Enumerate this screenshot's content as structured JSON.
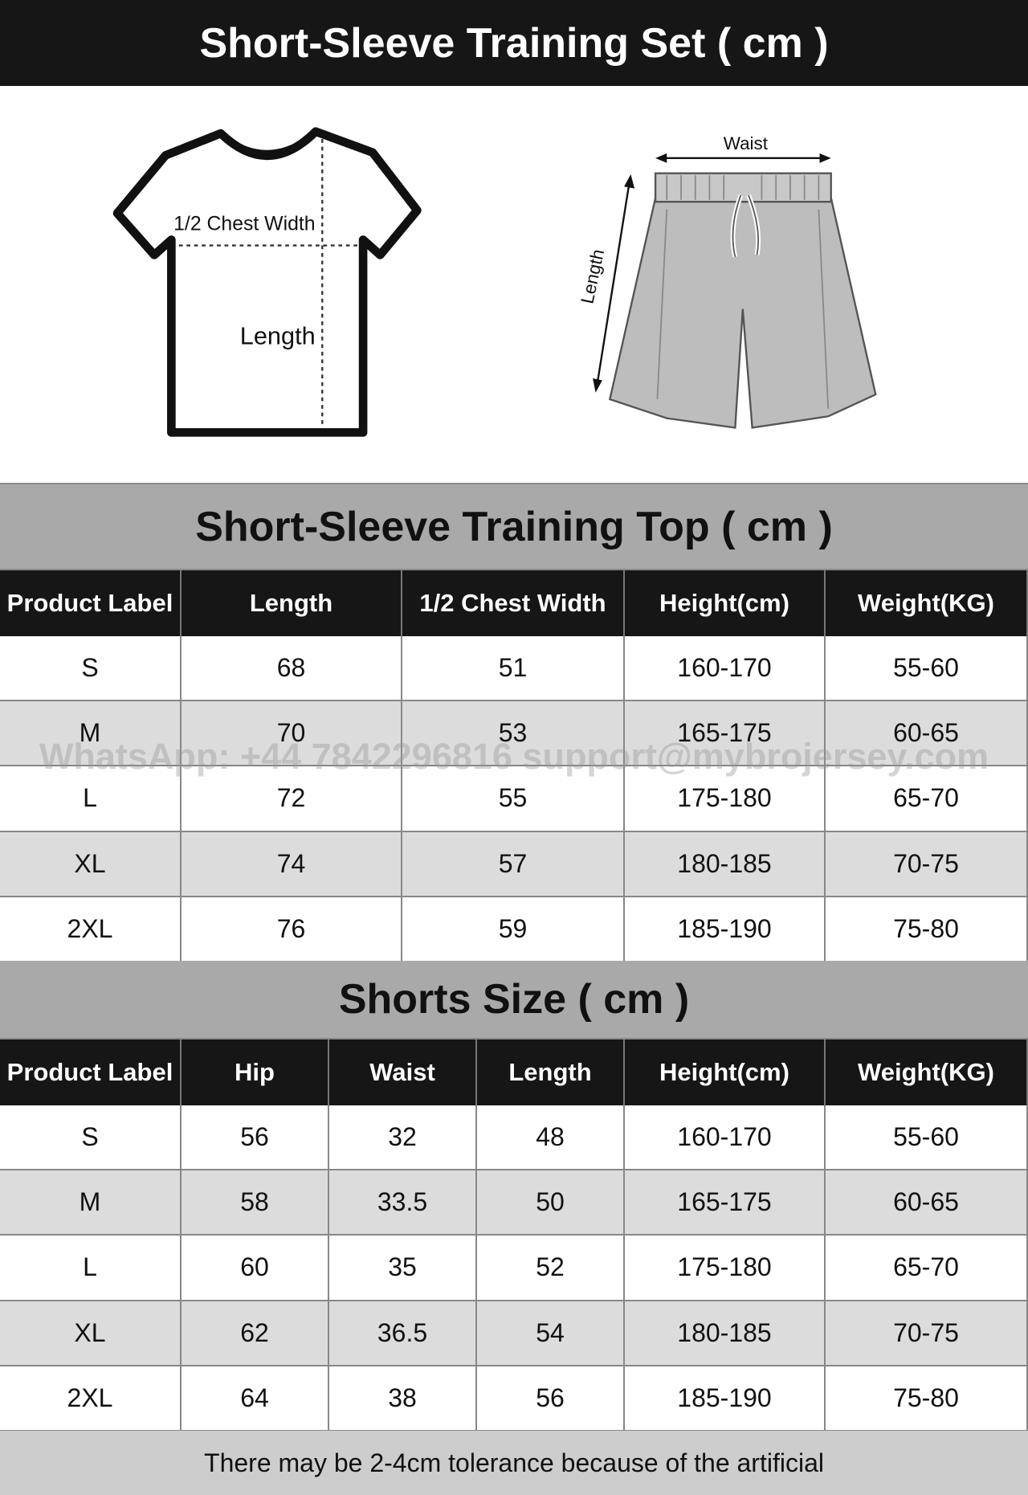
{
  "title": "Short-Sleeve Training Set ( cm )",
  "illustration": {
    "tshirt": {
      "chest_label": "1/2 Chest Width",
      "length_label": "Length"
    },
    "shorts": {
      "waist_label": "Waist",
      "length_label": "Length"
    }
  },
  "top_table": {
    "title": "Short-Sleeve Training Top ( cm )",
    "columns": [
      "Product Label",
      "Length",
      "1/2 Chest Width",
      "Height(cm)",
      "Weight(KG)"
    ],
    "rows": [
      [
        "S",
        "68",
        "51",
        "160-170",
        "55-60"
      ],
      [
        "M",
        "70",
        "53",
        "165-175",
        "60-65"
      ],
      [
        "L",
        "72",
        "55",
        "175-180",
        "65-70"
      ],
      [
        "XL",
        "74",
        "57",
        "180-185",
        "70-75"
      ],
      [
        "2XL",
        "76",
        "59",
        "185-190",
        "75-80"
      ]
    ]
  },
  "shorts_table": {
    "title": "Shorts Size ( cm )",
    "columns": [
      "Product Label",
      "Hip",
      "Waist",
      "Length",
      "Height(cm)",
      "Weight(KG)"
    ],
    "rows": [
      [
        "S",
        "56",
        "32",
        "48",
        "160-170",
        "55-60"
      ],
      [
        "M",
        "58",
        "33.5",
        "50",
        "165-175",
        "60-65"
      ],
      [
        "L",
        "60",
        "35",
        "52",
        "175-180",
        "65-70"
      ],
      [
        "XL",
        "62",
        "36.5",
        "54",
        "180-185",
        "70-75"
      ],
      [
        "2XL",
        "64",
        "38",
        "56",
        "185-190",
        "75-80"
      ]
    ]
  },
  "watermark": "WhatsApp: +44 7842296816  support@mybrojersey.com",
  "footer": "There may be 2-4cm tolerance because of the artificial"
}
